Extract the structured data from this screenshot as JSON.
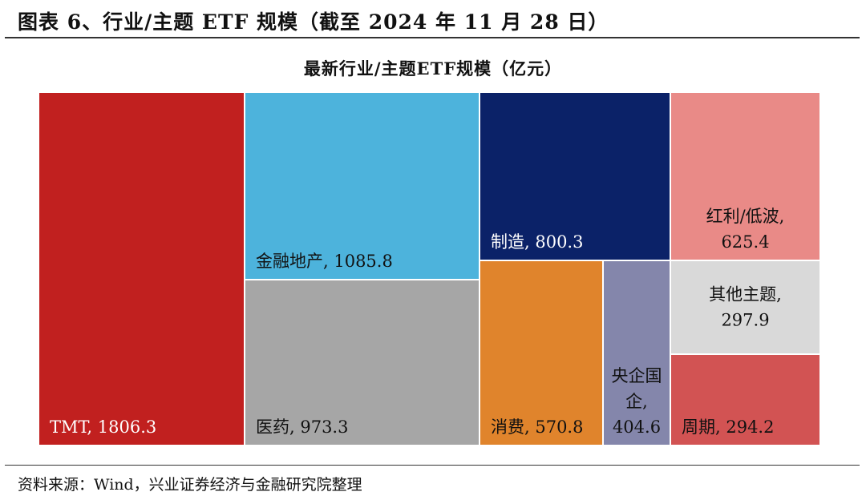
{
  "figure_title": "图表 6、行业/主题 ETF 规模（截至 2024 年 11 月 28 日）",
  "source_note": "资料来源：Wind，兴业证券经济与金融研究院整理",
  "chart_data": {
    "type": "treemap",
    "title": "最新行业/主题ETF规模（亿元）",
    "items": [
      {
        "label": "TMT, 1806.3",
        "value": 1806.3,
        "color": "#c1201f"
      },
      {
        "label": "金融地产, 1085.8",
        "value": 1085.8,
        "color": "#4db3dc"
      },
      {
        "label": "医药, 973.3",
        "value": 973.3,
        "color": "#a6a6a6"
      },
      {
        "label": "制造, 800.3",
        "value": 800.3,
        "color": "#0b2268"
      },
      {
        "label": "红利/低波, 625.4",
        "value": 625.4,
        "color": "#e98a87"
      },
      {
        "label": "消费, 570.8",
        "value": 570.8,
        "color": "#e0842c"
      },
      {
        "label": "央企国企, 404.6",
        "value": 404.6,
        "color": "#8486ab"
      },
      {
        "label": "其他主题, 297.9",
        "value": 297.9,
        "color": "#d9d9d9"
      },
      {
        "label": "周期, 294.2",
        "value": 294.2,
        "color": "#d25353"
      }
    ]
  }
}
